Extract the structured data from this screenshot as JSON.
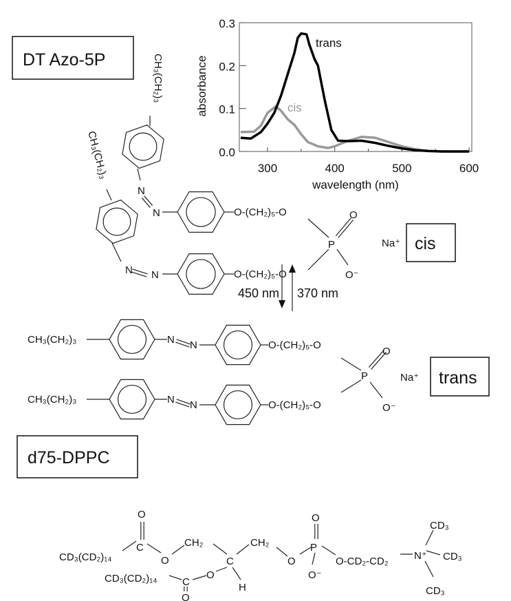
{
  "labels": {
    "dtazo": "DT Azo-5P",
    "cis_box": "cis",
    "trans_box": "trans",
    "dppc": "d75-DPPC",
    "arrow_down": "450 nm",
    "arrow_up": "370 nm"
  },
  "formulas": {
    "butyl": "CH₃(CH₂)₃",
    "n": "N",
    "linker": "O-(CH₂)₅-O",
    "p": "P",
    "o": "O",
    "o_minus": "O⁻",
    "na": "Na⁺",
    "dppc_chain": "CD₃(CD₂)₁₄",
    "c": "C",
    "ch2": "CH₂",
    "h": "H",
    "head": "O-CD₂-CD₂",
    "n_plus": "N⁺",
    "cd3": "CD₃"
  },
  "chart_data": {
    "type": "line",
    "xlabel": "wavelength (nm)",
    "ylabel": "absorbance",
    "xlim": [
      258,
      604
    ],
    "ylim": [
      0,
      0.3
    ],
    "xticks": [
      300,
      400,
      500,
      600
    ],
    "yticks": [
      "0.0",
      "0.1",
      "0.2",
      "0.3"
    ],
    "grid": false,
    "series": [
      {
        "name": "trans",
        "color": "#000000",
        "x": [
          260,
          275,
          290,
          300,
          310,
          320,
          330,
          340,
          345,
          350,
          358,
          362,
          370,
          375,
          385,
          395,
          405,
          420,
          440,
          460,
          480,
          500,
          520,
          540,
          560,
          600
        ],
        "y": [
          0.032,
          0.03,
          0.045,
          0.065,
          0.09,
          0.13,
          0.18,
          0.23,
          0.265,
          0.275,
          0.273,
          0.25,
          0.215,
          0.2,
          0.12,
          0.05,
          0.025,
          0.024,
          0.025,
          0.02,
          0.013,
          0.007,
          0.003,
          0.001,
          0,
          0
        ]
      },
      {
        "name": "cis",
        "color": "#999999",
        "x": [
          260,
          280,
          290,
          300,
          312,
          320,
          330,
          340,
          350,
          360,
          375,
          390,
          400,
          420,
          440,
          460,
          480,
          500,
          520,
          540,
          560,
          600
        ],
        "y": [
          0.045,
          0.046,
          0.06,
          0.09,
          0.105,
          0.095,
          0.075,
          0.062,
          0.04,
          0.022,
          0.012,
          0.008,
          0.012,
          0.025,
          0.034,
          0.032,
          0.022,
          0.012,
          0.005,
          0.001,
          0,
          0
        ]
      }
    ]
  }
}
